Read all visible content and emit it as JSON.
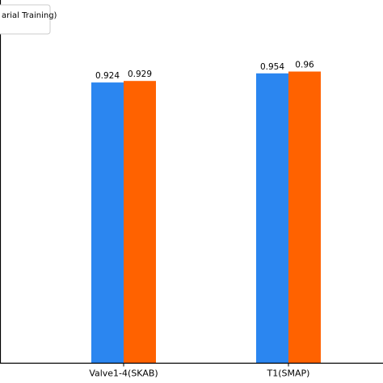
{
  "chart_data": {
    "type": "bar",
    "categories": [
      "Valve1-4(SKAB)",
      "T1(SMAP)"
    ],
    "series": [
      {
        "name": "",
        "values": [
          0.924,
          0.954
        ],
        "color": "#2b86f0"
      },
      {
        "name": "arial Training)",
        "values": [
          0.929,
          0.96
        ],
        "color": "#ff6200"
      }
    ],
    "value_labels": [
      [
        "0.924",
        "0.954"
      ],
      [
        "0.929",
        "0.96"
      ]
    ],
    "ylim": [
      0,
      1.0
    ],
    "grid": false,
    "legend_position": "top-left",
    "title": "",
    "xlabel": "",
    "ylabel": ""
  }
}
